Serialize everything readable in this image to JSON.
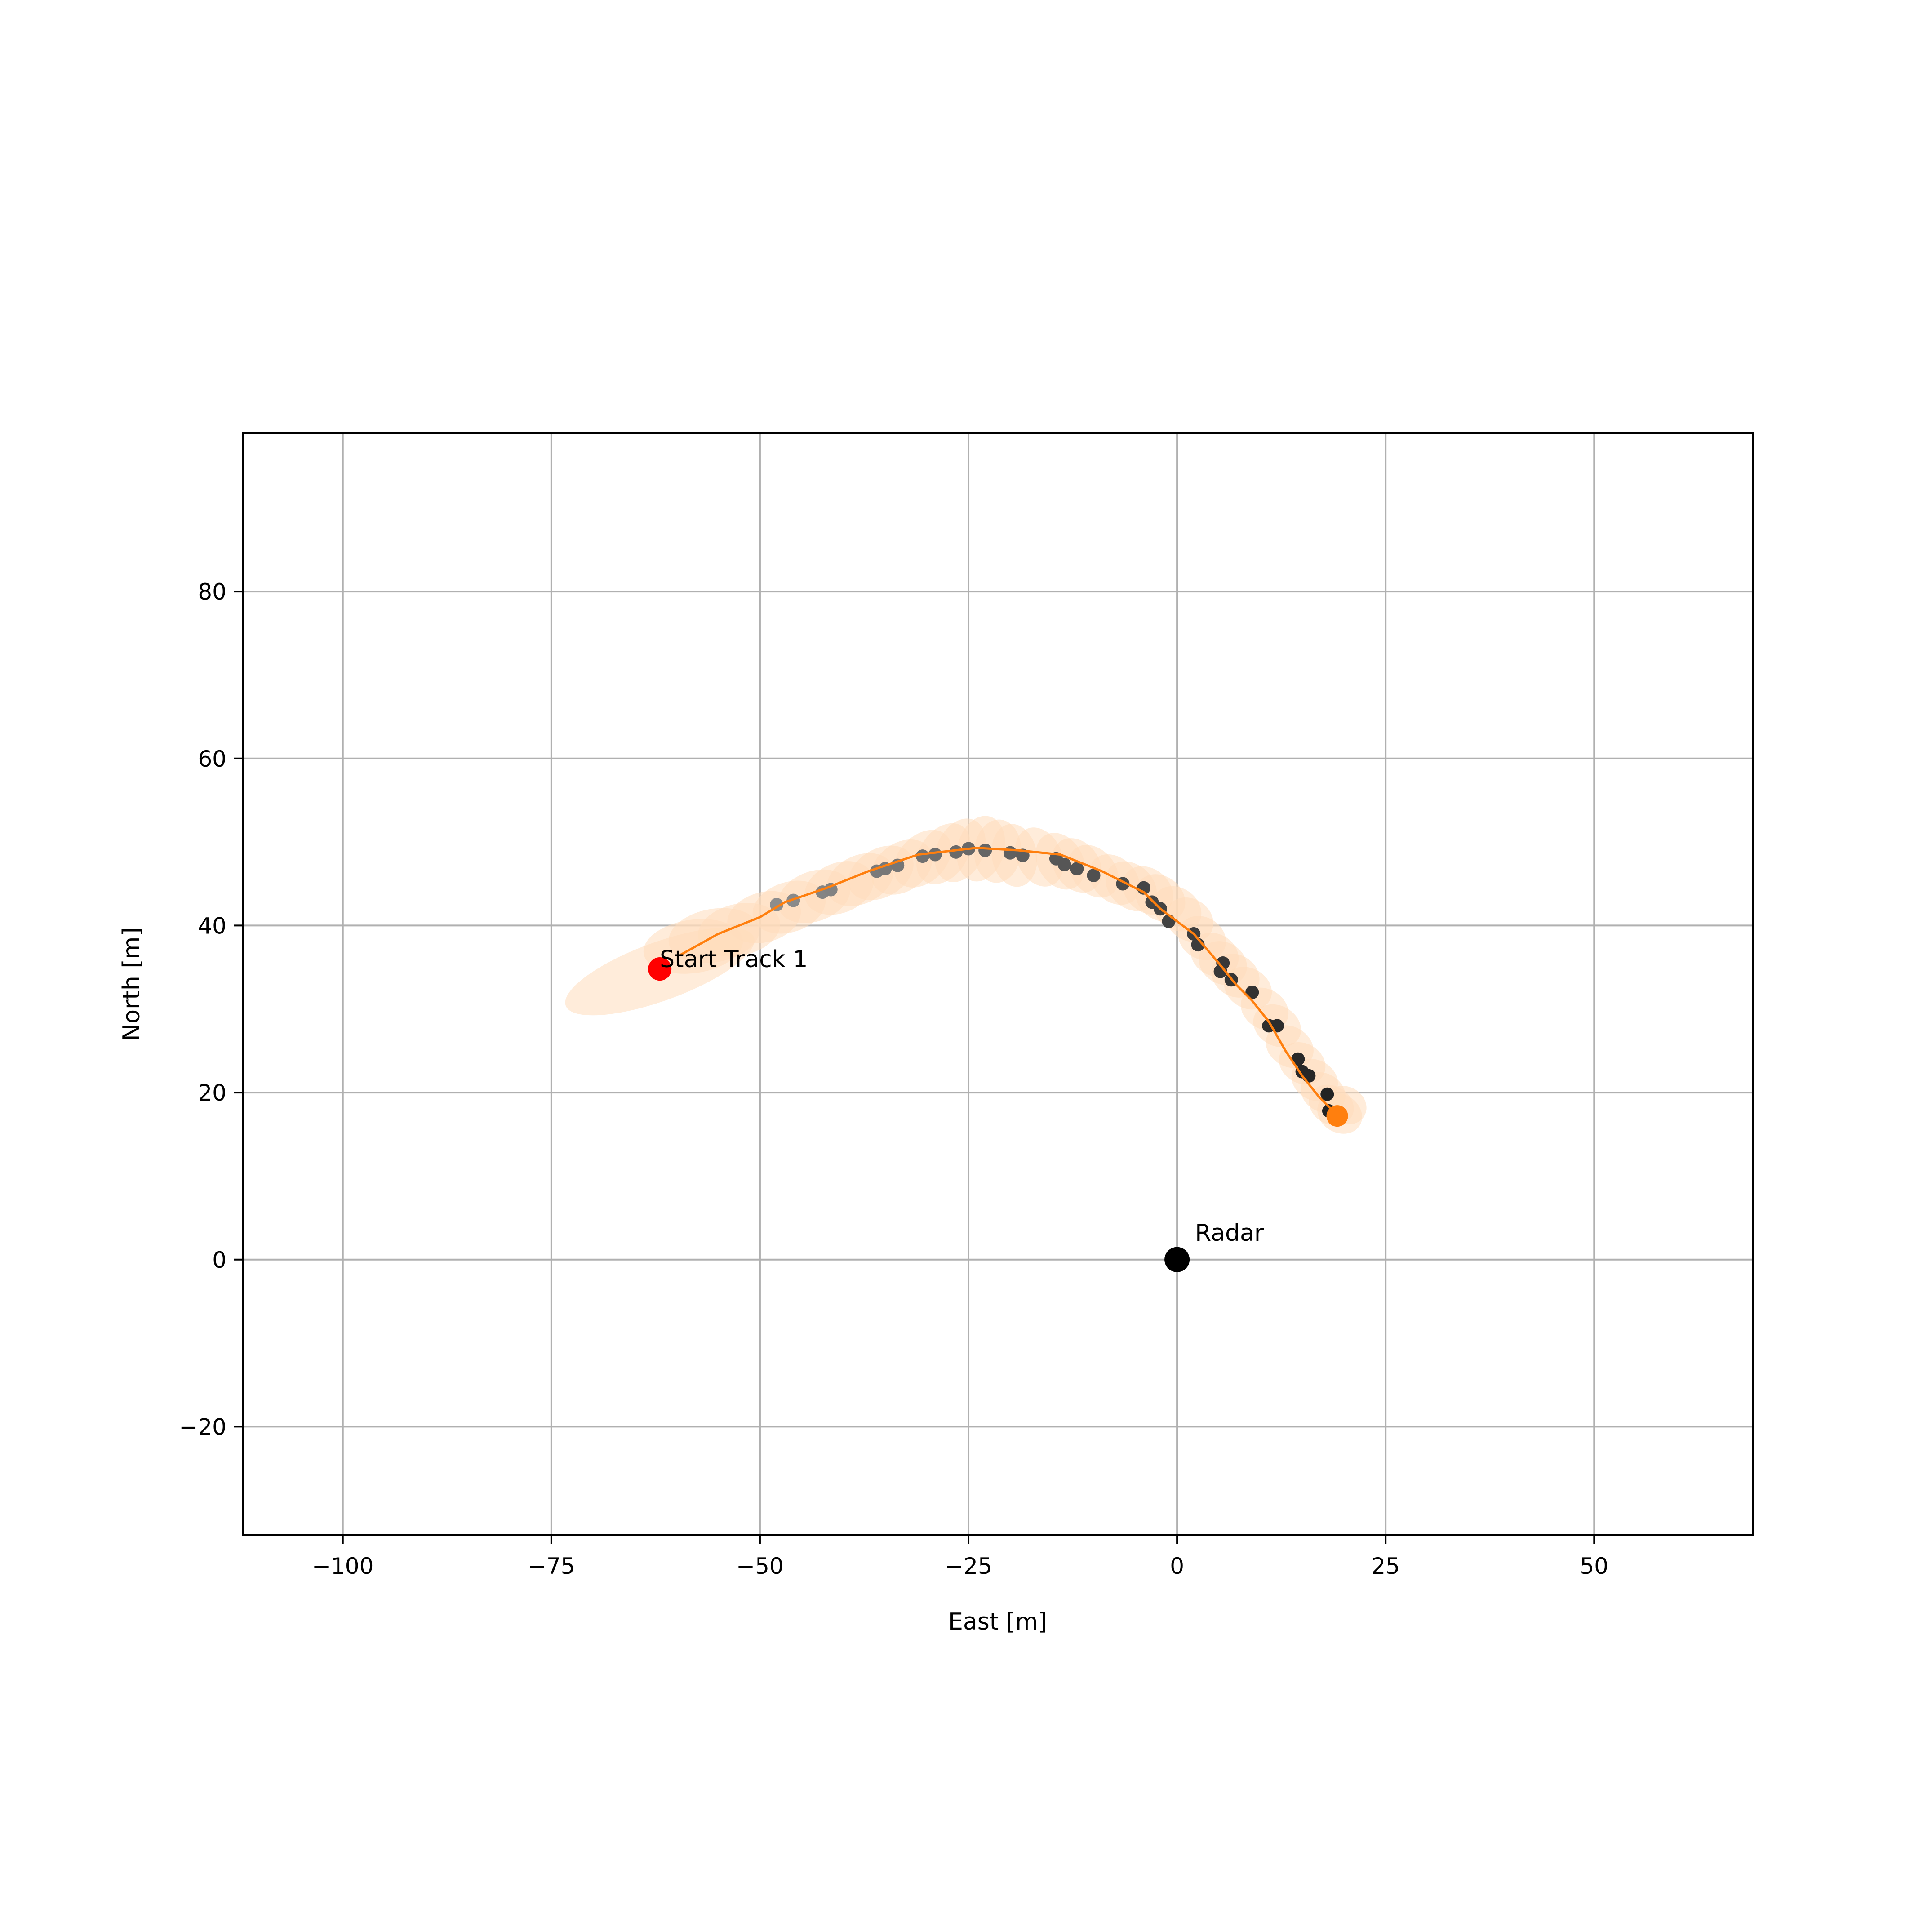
{
  "chart_data": {
    "type": "scatter",
    "title": "",
    "xlabel": "East [m]",
    "ylabel": "North [m]",
    "xlim": [
      -112,
      69
    ],
    "ylim": [
      -33,
      99
    ],
    "grid": true,
    "x_ticks": [
      -100,
      -75,
      -50,
      -25,
      0,
      25,
      50
    ],
    "x_tick_labels": [
      "−100",
      "−75",
      "−50",
      "−25",
      "0",
      "25",
      "50"
    ],
    "y_ticks": [
      -20,
      0,
      20,
      40,
      60,
      80
    ],
    "y_tick_labels": [
      "−20",
      "0",
      "20",
      "40",
      "60",
      "80"
    ],
    "colors": {
      "track": "#ff7f0e",
      "ellipse": "#ffdcbc",
      "start": "#ff0000",
      "radar": "#000000",
      "grid": "#b0b0b0",
      "measurement_far": "#909090",
      "measurement_near": "#202020"
    },
    "series": [
      {
        "role": "track",
        "x": [
          -59.5,
          -55,
          -50,
          -47,
          -42,
          -37,
          -31,
          -24,
          -19,
          -14,
          -9,
          -4,
          -2,
          2,
          5,
          7,
          9,
          11,
          13,
          15,
          17,
          18.5,
          19.2
        ],
        "y": [
          36.5,
          39,
          41,
          42.8,
          44.5,
          46.5,
          48.5,
          49.3,
          49,
          48.5,
          46.5,
          44,
          42,
          39,
          35.5,
          33,
          31,
          28.5,
          25,
          22,
          19.5,
          18,
          17.2
        ]
      },
      {
        "role": "measurements",
        "x": [
          -48,
          -46,
          -42.5,
          -41.5,
          -36,
          -35,
          -33.5,
          -30.5,
          -29,
          -26.5,
          -25,
          -23,
          -20,
          -18.5,
          -14.5,
          -13.5,
          -12,
          -10,
          -6.5,
          -4,
          -3,
          -2,
          -1,
          2,
          2.5,
          5.5,
          5.2,
          6.5,
          9,
          11,
          12,
          14.5,
          15,
          15.8,
          18,
          18.2
        ],
        "y": [
          42.5,
          43,
          44,
          44.3,
          46.5,
          46.8,
          47.2,
          48.3,
          48.5,
          48.8,
          49.2,
          49,
          48.7,
          48.4,
          48,
          47.3,
          46.8,
          46,
          45,
          44.5,
          42.8,
          42,
          40.5,
          39,
          37.7,
          35.5,
          34.5,
          33.5,
          32,
          28,
          28,
          24,
          22.5,
          22,
          19.8,
          17.8
        ]
      },
      {
        "role": "uncertainty-ellipses",
        "x": [
          -62,
          -58,
          -55.5,
          -52.5,
          -49.5,
          -46.5,
          -43.5,
          -40.5,
          -38,
          -35.5,
          -33,
          -30.5,
          -28,
          -26,
          -23.5,
          -21.5,
          -19.5,
          -16.5,
          -14,
          -12,
          -10,
          -7.5,
          -5.5,
          -3.5,
          -2,
          0,
          1.5,
          3,
          4.5,
          5.5,
          7,
          8.5,
          10.5,
          12,
          13.5,
          15,
          16.5,
          17.5,
          18.5,
          19.5,
          20.2
        ],
        "y": [
          34.5,
          37.5,
          38.8,
          39.5,
          41,
          42.2,
          43.5,
          44.5,
          45.5,
          46.3,
          47,
          48,
          48.6,
          49,
          49.2,
          48.9,
          48.4,
          48.2,
          47.7,
          47.2,
          46.5,
          45.5,
          44.7,
          44.2,
          43.3,
          42,
          40.7,
          38.5,
          36.5,
          35.5,
          34,
          32.5,
          30,
          28,
          25.5,
          23.5,
          21.5,
          20,
          18.5,
          17.5,
          18.5
        ],
        "rx": [
          12,
          6,
          5.5,
          5,
          4.5,
          4.5,
          4.5,
          4.3,
          4.2,
          4.2,
          4,
          4,
          4,
          4,
          4,
          3.8,
          3.8,
          3.7,
          3.6,
          3.5,
          3.5,
          3.4,
          3.4,
          3.3,
          3.2,
          3.1,
          3,
          3,
          3,
          3,
          3,
          3,
          3,
          3,
          3,
          2.9,
          2.9,
          2.8,
          2.8,
          2.8,
          2.6
        ],
        "ry": [
          3.5,
          3.2,
          3.2,
          3.1,
          3,
          3,
          3,
          3,
          2.9,
          2.9,
          2.9,
          2.8,
          2.8,
          2.8,
          2.8,
          2.8,
          2.7,
          2.7,
          2.7,
          2.7,
          2.6,
          2.6,
          2.6,
          2.6,
          2.6,
          2.5,
          2.5,
          2.5,
          2.5,
          2.5,
          2.5,
          2.4,
          2.4,
          2.4,
          2.4,
          2.4,
          2.4,
          2.3,
          2.3,
          2.3,
          2.2
        ],
        "angle": [
          -20,
          -8,
          -10,
          -12,
          -15,
          -18,
          -20,
          -22,
          -25,
          -30,
          -35,
          -45,
          -55,
          -65,
          -75,
          -85,
          80,
          65,
          60,
          55,
          50,
          45,
          42,
          40,
          38,
          35,
          33,
          32,
          30,
          30,
          30,
          30,
          30,
          30,
          30,
          30,
          30,
          30,
          30,
          30,
          30
        ]
      }
    ],
    "points": {
      "start": {
        "x": -62,
        "y": 34.8,
        "label": "Start Track 1"
      },
      "end": {
        "x": 19.2,
        "y": 17.2
      },
      "radar": {
        "x": 0,
        "y": 0,
        "label": "Radar"
      }
    }
  }
}
